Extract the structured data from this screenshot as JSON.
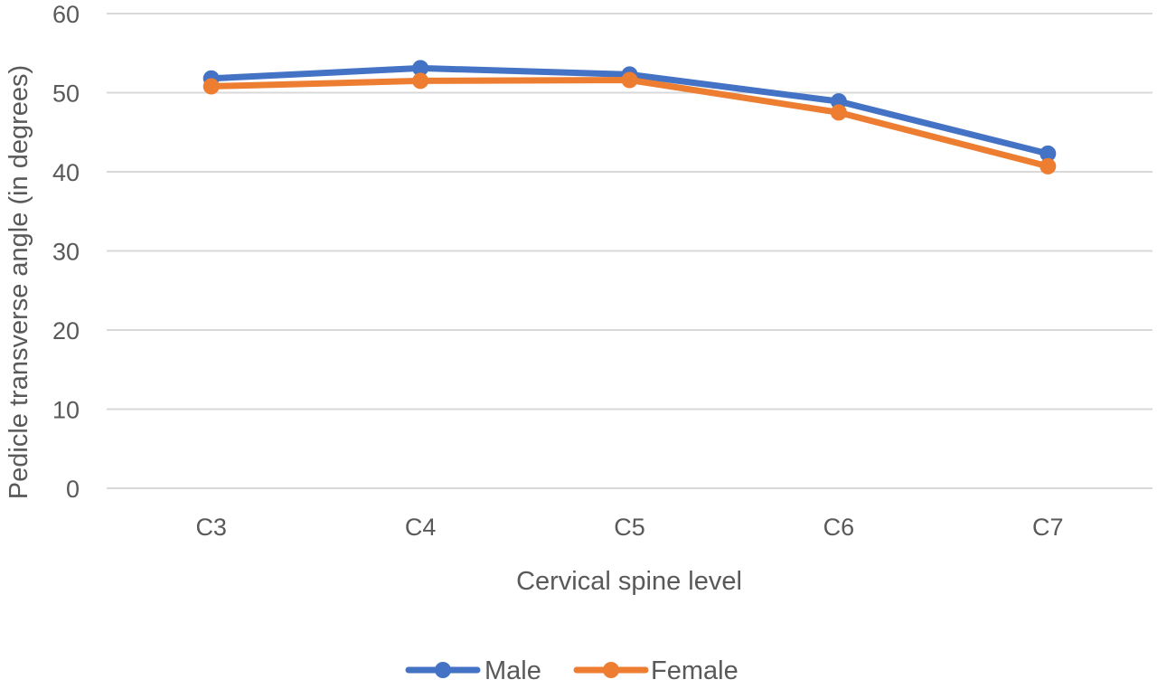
{
  "chart_data": {
    "type": "line",
    "title": "",
    "xlabel": "Cervical spine level",
    "ylabel": "Pedicle transverse angle (in degrees)",
    "categories": [
      "C3",
      "C4",
      "C5",
      "C6",
      "C7"
    ],
    "ylim": [
      0,
      60
    ],
    "yticks": [
      0,
      10,
      20,
      30,
      40,
      50,
      60
    ],
    "grid": true,
    "legend_position": "bottom",
    "series": [
      {
        "name": "Male",
        "color": "#4472C4",
        "values": [
          51.8,
          53.1,
          52.3,
          48.9,
          42.3
        ]
      },
      {
        "name": "Female",
        "color": "#ED7D31",
        "values": [
          50.8,
          51.5,
          51.6,
          47.5,
          40.7
        ]
      }
    ]
  }
}
